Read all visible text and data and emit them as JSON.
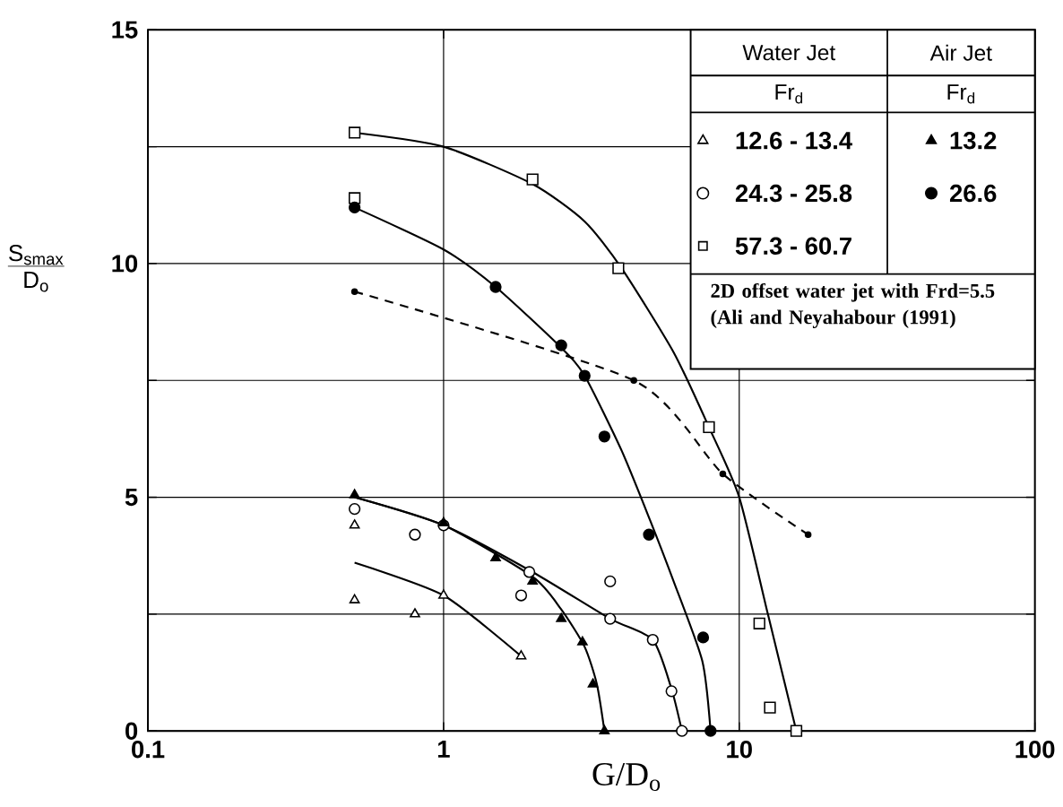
{
  "chart_data": {
    "type": "scatter",
    "xlabel": "G/D$_{o}$",
    "ylabel": "\\frac{\\mathrm{S_{smax}}}{\\mathrm{D_o}}",
    "log": "x",
    "xlim": [
      0.1,
      100
    ],
    "ylim": [
      0,
      15
    ],
    "xticks": [
      0.1,
      1,
      10,
      100
    ],
    "yticks": [
      0,
      {
        "value": 2.5,
        "label": null
      },
      5,
      {
        "value": 7.5,
        "label": null
      },
      10,
      {
        "value": 12.5,
        "label": null
      },
      15
    ],
    "grid": true,
    "legend": "top right",
    "annotations": [
      "Water Jet",
      "Air Jet",
      "Fr$_{d}$",
      "Fr$_{d}$",
      "2D offset water jet with Frd=5.5 (Ali and Neyahabour (1991)"
    ],
    "series": [
      {
        "name": "12.6 - 13.4",
        "marker": "triangle",
        "color": "#ffffff",
        "x": [
          0.5,
          0.5,
          0.8,
          1.0,
          1.83
        ],
        "values": [
          4.4,
          2.8,
          2.5,
          2.9,
          1.6
        ]
      },
      {
        "name": "24.3 - 25.8",
        "marker": "circle",
        "color": "#ffffff",
        "x": [
          0.5,
          0.8,
          1.0,
          1.83,
          1.95,
          3.66,
          3.66,
          5.1,
          5.9,
          6.4
        ],
        "values": [
          4.75,
          4.2,
          4.4,
          2.9,
          3.4,
          3.2,
          2.4,
          1.95,
          0.85,
          0
        ]
      },
      {
        "name": "57.3 - 60.7",
        "marker": "square",
        "color": "#ffffff",
        "x": [
          0.5,
          0.5,
          2.0,
          3.9,
          7.9,
          11.7,
          12.7,
          15.6
        ],
        "values": [
          12.8,
          11.4,
          11.8,
          9.9,
          6.5,
          2.3,
          0.5,
          0
        ]
      },
      {
        "name": "13.2",
        "marker": "triangle",
        "color": "#000000",
        "x": [
          0.5,
          1.0,
          1.5,
          2.0,
          2.5,
          2.95,
          3.2,
          3.5
        ],
        "values": [
          5.05,
          4.45,
          3.7,
          3.2,
          2.4,
          1.9,
          1.0,
          0
        ]
      },
      {
        "name": "26.6",
        "marker": "circle",
        "color": "#000000",
        "x": [
          0.5,
          1.5,
          2.5,
          3.0,
          3.5,
          4.95,
          7.55,
          8.0
        ],
        "values": [
          11.2,
          9.5,
          8.25,
          7.6,
          6.3,
          4.2,
          2.0,
          0
        ]
      },
      {
        "type": "line",
        "marker": "circle",
        "line_style": "dashed",
        "color": "#000000",
        "x": [
          0.5,
          4.4,
          8.8,
          17.1
        ],
        "values": [
          9.4,
          7.5,
          5.5,
          4.2
        ]
      },
      {
        "type": "line",
        "marker": "none",
        "line_style": "solid",
        "color": "#000000",
        "x": [
          0.5,
          1.0,
          1.83
        ],
        "values": [
          3.6,
          2.9,
          1.6
        ]
      },
      {
        "type": "line",
        "marker": "none",
        "line_style": "solid",
        "color": "#000000",
        "x": [
          0.5,
          1.0,
          2.0,
          3.66,
          5.1,
          5.9,
          6.4
        ],
        "values": [
          5.0,
          4.4,
          3.4,
          2.4,
          1.95,
          0.9,
          0
        ]
      },
      {
        "type": "line",
        "marker": "none",
        "line_style": "solid",
        "color": "#000000",
        "x": [
          0.5,
          1.0,
          2.0,
          3.0,
          4.0,
          6.0,
          7.9,
          10.0,
          12.5,
          15.6
        ],
        "values": [
          12.8,
          12.5,
          11.7,
          10.9,
          9.9,
          8.1,
          6.5,
          5.0,
          2.5,
          0
        ]
      },
      {
        "type": "line",
        "marker": "none",
        "line_style": "solid",
        "color": "#000000",
        "x": [
          0.5,
          1.0,
          2.0,
          2.5,
          3.0,
          3.3,
          3.5
        ],
        "values": [
          5.0,
          4.4,
          3.3,
          2.6,
          1.8,
          1.0,
          0
        ]
      },
      {
        "type": "line",
        "marker": "none",
        "line_style": "solid",
        "color": "#000000",
        "x": [
          0.5,
          1.0,
          1.5,
          2.5,
          3.0,
          4.0,
          5.0,
          6.0,
          7.5,
          8.0
        ],
        "values": [
          11.2,
          10.3,
          9.5,
          8.2,
          7.6,
          6.0,
          4.5,
          3.2,
          1.5,
          0
        ]
      }
    ]
  }
}
